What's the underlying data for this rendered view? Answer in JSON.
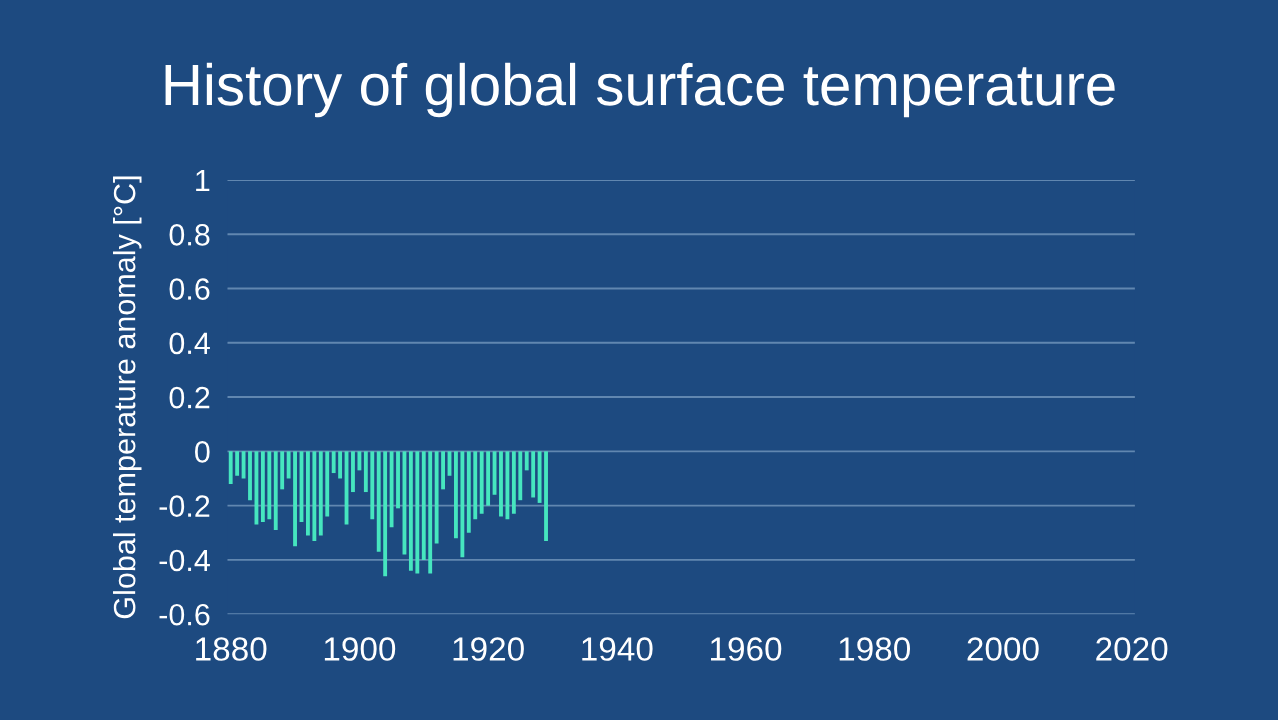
{
  "chart_data": {
    "type": "bar",
    "title": "History of global surface temperature",
    "ylabel": "Global temperature anomaly [°C]",
    "x": [
      1880,
      1881,
      1882,
      1883,
      1884,
      1885,
      1886,
      1887,
      1888,
      1889,
      1890,
      1891,
      1892,
      1893,
      1894,
      1895,
      1896,
      1897,
      1898,
      1899,
      1900,
      1901,
      1902,
      1903,
      1904,
      1905,
      1906,
      1907,
      1908,
      1909,
      1910,
      1911,
      1912,
      1913,
      1914,
      1915,
      1916,
      1917,
      1918,
      1919,
      1920,
      1921,
      1922,
      1923,
      1924,
      1925,
      1926,
      1927,
      1928,
      1929
    ],
    "values": [
      -0.12,
      -0.09,
      -0.1,
      -0.18,
      -0.27,
      -0.26,
      -0.25,
      -0.29,
      -0.14,
      -0.1,
      -0.35,
      -0.26,
      -0.31,
      -0.33,
      -0.31,
      -0.24,
      -0.08,
      -0.1,
      -0.27,
      -0.15,
      -0.07,
      -0.15,
      -0.25,
      -0.37,
      -0.46,
      -0.28,
      -0.21,
      -0.38,
      -0.44,
      -0.45,
      -0.4,
      -0.45,
      -0.34,
      -0.14,
      -0.09,
      -0.32,
      -0.39,
      -0.3,
      -0.25,
      -0.23,
      -0.2,
      -0.16,
      -0.24,
      -0.25,
      -0.23,
      -0.18,
      -0.07,
      -0.17,
      -0.19,
      -0.33
    ],
    "color": "#46e6bf",
    "xlim": [
      1879.5,
      2020.5
    ],
    "xticks": [
      1880,
      1900,
      1920,
      1940,
      1960,
      1980,
      2000,
      2020
    ],
    "ylim": [
      -0.6,
      1
    ],
    "yticks": [
      -0.6,
      -0.4,
      -0.2,
      0,
      0.2,
      0.4,
      0.6,
      0.8,
      1
    ],
    "grid": "y"
  }
}
